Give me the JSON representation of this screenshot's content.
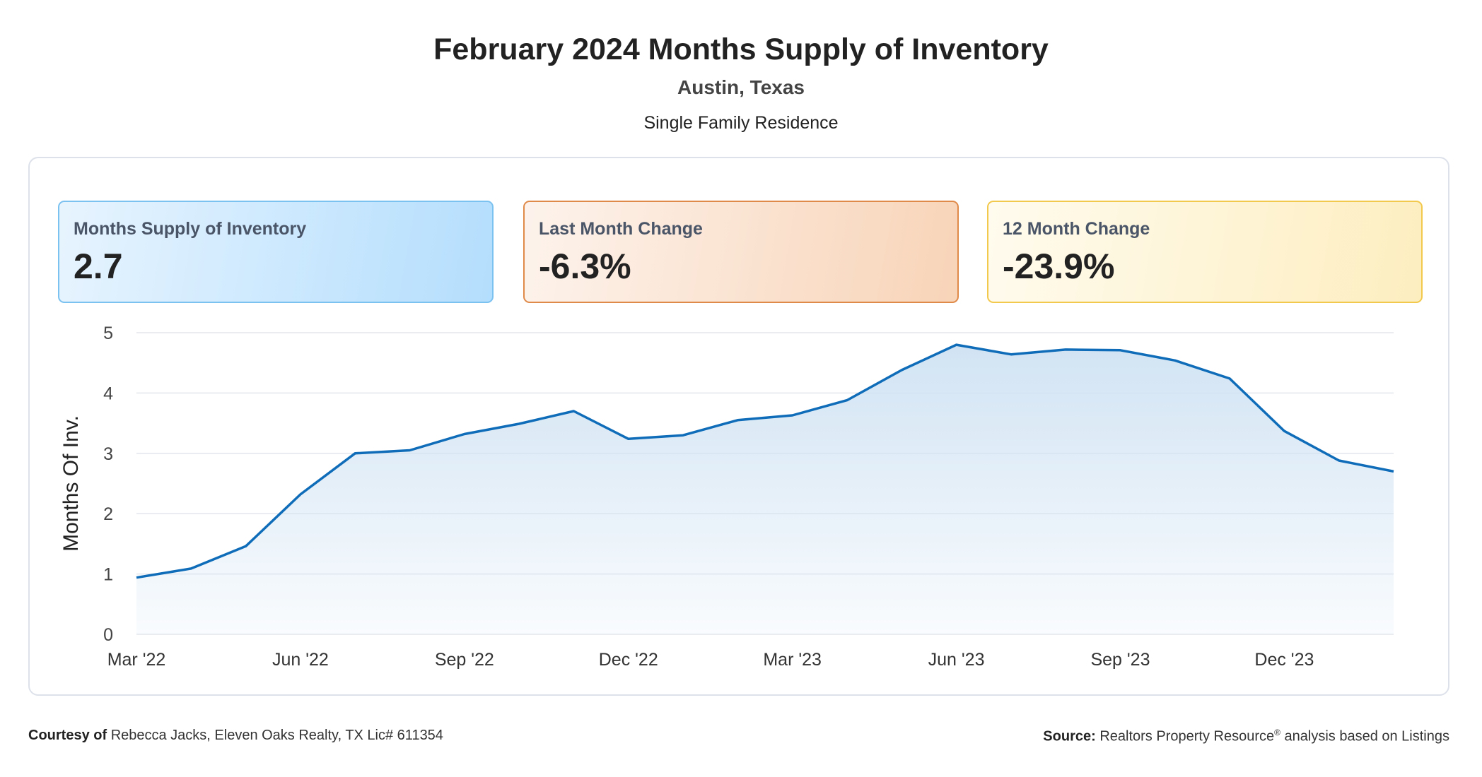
{
  "header": {
    "title": "February 2024 Months Supply of Inventory",
    "location": "Austin, Texas",
    "property_type": "Single Family Residence"
  },
  "cards": [
    {
      "label": "Months Supply of Inventory",
      "value": "2.7",
      "color": "#b4defd"
    },
    {
      "label": "Last Month Change",
      "value": "-6.3%",
      "color": "#f8d4b8"
    },
    {
      "label": "12 Month Change",
      "value": "-23.9%",
      "color": "#fdeec0"
    }
  ],
  "footer": {
    "courtesy_label": "Courtesy of",
    "courtesy_text": "Rebecca Jacks, Eleven Oaks Realty, TX Lic# 611354",
    "source_label": "Source:",
    "source_text": "Realtors Property Resource",
    "source_sup": "®",
    "source_suffix": "analysis based on Listings"
  },
  "chart_data": {
    "type": "area",
    "ylabel": "Months Of Inv.",
    "ylim": [
      0,
      5
    ],
    "yticks": [
      0,
      1,
      2,
      3,
      4,
      5
    ],
    "x": [
      "Mar '22",
      "Apr '22",
      "May '22",
      "Jun '22",
      "Jul '22",
      "Aug '22",
      "Sep '22",
      "Oct '22",
      "Nov '22",
      "Dec '22",
      "Jan '23",
      "Feb '23",
      "Mar '23",
      "Apr '23",
      "May '23",
      "Jun '23",
      "Jul '23",
      "Aug '23",
      "Sep '23",
      "Oct '23",
      "Nov '23",
      "Dec '23",
      "Jan '24",
      "Feb '24"
    ],
    "xtick_labels": [
      "Mar '22",
      "Jun '22",
      "Sep '22",
      "Dec '22",
      "Mar '23",
      "Jun '23",
      "Sep '23",
      "Dec '23"
    ],
    "series": [
      {
        "values": [
          0.94,
          1.09,
          1.46,
          2.32,
          3.0,
          3.05,
          3.32,
          3.49,
          3.7,
          3.24,
          3.3,
          3.55,
          3.63,
          3.88,
          4.38,
          4.8,
          4.64,
          4.72,
          4.71,
          4.54,
          4.24,
          3.37,
          2.88,
          2.7
        ]
      }
    ],
    "grid": true,
    "line_color": "#0e6cb8",
    "fill_color": "#cfe2f3"
  }
}
